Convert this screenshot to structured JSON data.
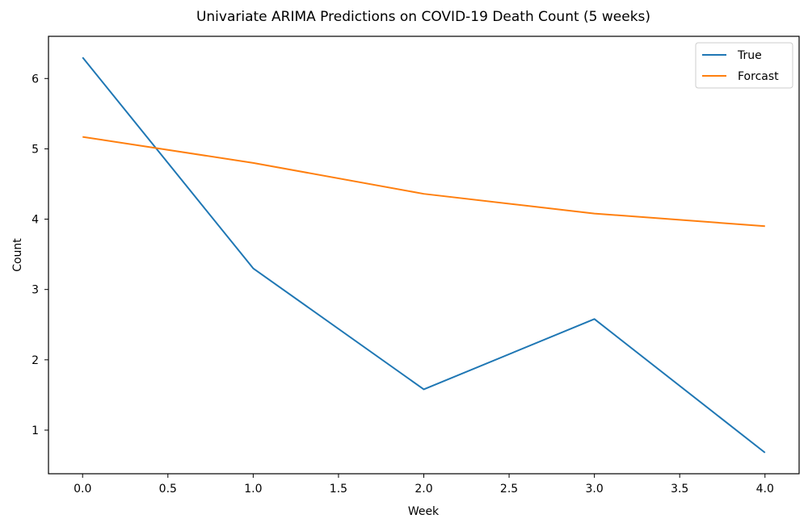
{
  "chart_data": {
    "type": "line",
    "title": "Univariate ARIMA Predictions on COVID-19 Death Count (5 weeks)",
    "xlabel": "Week",
    "ylabel": "Count",
    "x": [
      0,
      1,
      2,
      3,
      4
    ],
    "xlim": [
      -0.2,
      4.2
    ],
    "ylim": [
      0.38,
      6.6
    ],
    "x_ticks": [
      0.0,
      0.5,
      1.0,
      1.5,
      2.0,
      2.5,
      3.0,
      3.5,
      4.0
    ],
    "x_tick_labels": [
      "0.0",
      "0.5",
      "1.0",
      "1.5",
      "2.0",
      "2.5",
      "3.0",
      "3.5",
      "4.0"
    ],
    "y_ticks": [
      1,
      2,
      3,
      4,
      5,
      6
    ],
    "y_tick_labels": [
      "1",
      "2",
      "3",
      "4",
      "5",
      "6"
    ],
    "grid": false,
    "legend_position": "top-right",
    "series": [
      {
        "name": "True",
        "color": "#1f77b4",
        "values": [
          6.3,
          3.3,
          1.58,
          2.58,
          0.68
        ]
      },
      {
        "name": "Forcast",
        "color": "#ff7f0e",
        "values": [
          5.17,
          4.8,
          4.36,
          4.08,
          3.9
        ]
      }
    ]
  }
}
